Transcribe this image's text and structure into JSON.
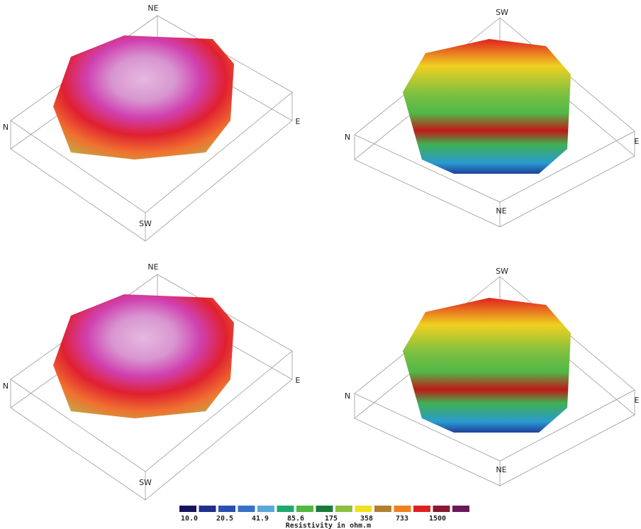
{
  "panels": [
    {
      "top": "NE",
      "left": "N",
      "right": "E",
      "bottom": "SW"
    },
    {
      "top": "SW",
      "left": "N",
      "right": "E",
      "bottom": "NE"
    },
    {
      "top": "NE",
      "left": "N",
      "right": "E",
      "bottom": "SW"
    },
    {
      "top": "SW",
      "left": "N",
      "right": "E",
      "bottom": "NE"
    }
  ],
  "legend": {
    "colors": [
      "#15155e",
      "#1f2f8c",
      "#2a4fb0",
      "#3a70c8",
      "#5aa8d8",
      "#20a870",
      "#50b840",
      "#1a7a3a",
      "#8cc040",
      "#f0e020",
      "#b08030",
      "#f08020",
      "#e02020",
      "#8a1a30",
      "#6a1a5a"
    ],
    "labels": [
      "10.0",
      "20.5",
      "41.9",
      "85.6",
      "175",
      "358",
      "733",
      "1500"
    ],
    "title": "Resistivity in ohm.m"
  }
}
